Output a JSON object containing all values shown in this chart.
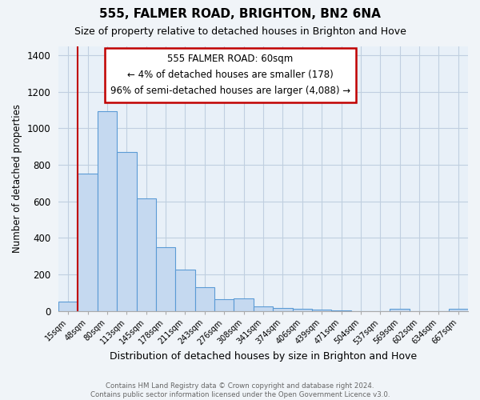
{
  "title": "555, FALMER ROAD, BRIGHTON, BN2 6NA",
  "subtitle": "Size of property relative to detached houses in Brighton and Hove",
  "xlabel": "Distribution of detached houses by size in Brighton and Hove",
  "ylabel": "Number of detached properties",
  "footer_line1": "Contains HM Land Registry data © Crown copyright and database right 2024.",
  "footer_line2": "Contains public sector information licensed under the Open Government Licence v3.0.",
  "annotation_title": "555 FALMER ROAD: 60sqm",
  "annotation_line2": "← 4% of detached houses are smaller (178)",
  "annotation_line3": "96% of semi-detached houses are larger (4,088) →",
  "bar_color": "#c5d9f0",
  "bar_edge_color": "#5b9bd5",
  "vline_color": "#c00000",
  "annotation_box_color": "#ffffff",
  "annotation_box_edge_color": "#c00000",
  "categories": [
    "15sqm",
    "48sqm",
    "80sqm",
    "113sqm",
    "145sqm",
    "178sqm",
    "211sqm",
    "243sqm",
    "276sqm",
    "308sqm",
    "341sqm",
    "374sqm",
    "406sqm",
    "439sqm",
    "471sqm",
    "504sqm",
    "537sqm",
    "569sqm",
    "602sqm",
    "634sqm",
    "667sqm"
  ],
  "values": [
    52,
    750,
    1095,
    870,
    615,
    348,
    228,
    130,
    65,
    70,
    25,
    18,
    10,
    5,
    2,
    0,
    0,
    12,
    0,
    0,
    12
  ],
  "vline_x_index": 1,
  "ylim": [
    0,
    1450
  ],
  "yticks": [
    0,
    200,
    400,
    600,
    800,
    1000,
    1200,
    1400
  ],
  "background_color": "#f0f4f8",
  "plot_background_color": "#e8f0f8",
  "grid_color": "#c0cfe0"
}
